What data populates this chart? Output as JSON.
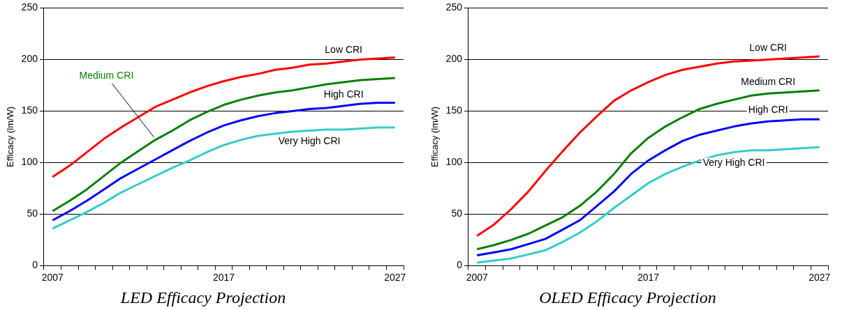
{
  "chart_data": [
    {
      "type": "line",
      "title": "LED Efficacy Projection",
      "ylabel": "Efficacy (lm/W)",
      "categories": [
        "2007",
        null,
        null,
        null,
        null,
        null,
        null,
        null,
        null,
        null,
        "2017",
        null,
        null,
        null,
        null,
        null,
        null,
        null,
        null,
        null,
        "2027"
      ],
      "series": [
        {
          "name": "Low CRI",
          "color": "#ff0000",
          "values": [
            86,
            97,
            110,
            123,
            134,
            144,
            154,
            161,
            168,
            174,
            179,
            183,
            186,
            190,
            192,
            195,
            196,
            198,
            200,
            201,
            202
          ]
        },
        {
          "name": "Medium CRI",
          "color": "#008000",
          "values": [
            53,
            63,
            74,
            87,
            100,
            111,
            122,
            131,
            141,
            149,
            156,
            161,
            165,
            168,
            170,
            173,
            176,
            178,
            180,
            181,
            182
          ]
        },
        {
          "name": "High CRI",
          "color": "#0000ff",
          "values": [
            44,
            53,
            63,
            74,
            85,
            94,
            103,
            112,
            121,
            129,
            136,
            141,
            145,
            148,
            150,
            152,
            153,
            155,
            157,
            158,
            158
          ]
        },
        {
          "name": "Very High CRI",
          "color": "#33cccc",
          "values": [
            36,
            44,
            52,
            61,
            71,
            79,
            87,
            95,
            102,
            110,
            117,
            122,
            126,
            128,
            130,
            131,
            132,
            132,
            133,
            134,
            134
          ]
        }
      ],
      "ylim": [
        0,
        250
      ],
      "yticks": [
        0,
        50,
        100,
        150,
        200,
        250
      ],
      "grid": "y",
      "legend": false,
      "marker": "none",
      "line_style": "solid"
    },
    {
      "type": "line",
      "title": "OLED Efficacy Projection",
      "ylabel": "Efficacy (lm/W)",
      "categories": [
        "2007",
        null,
        null,
        null,
        null,
        null,
        null,
        null,
        null,
        null,
        "2017",
        null,
        null,
        null,
        null,
        null,
        null,
        null,
        null,
        null,
        "2027"
      ],
      "series": [
        {
          "name": "Low CRI",
          "color": "#ff0000",
          "values": [
            29,
            40,
            55,
            72,
            92,
            111,
            129,
            145,
            160,
            170,
            178,
            185,
            190,
            193,
            196,
            198,
            199,
            200,
            201,
            202,
            203
          ]
        },
        {
          "name": "Medium CRI",
          "color": "#008000",
          "values": [
            16,
            20,
            25,
            31,
            39,
            47,
            58,
            72,
            89,
            109,
            124,
            135,
            144,
            152,
            157,
            161,
            165,
            167,
            168,
            169,
            170
          ]
        },
        {
          "name": "High CRI",
          "color": "#0000ff",
          "values": [
            10,
            13,
            16,
            21,
            26,
            35,
            44,
            58,
            72,
            89,
            102,
            112,
            121,
            127,
            131,
            135,
            138,
            140,
            141,
            142,
            142
          ]
        },
        {
          "name": "Very High CRI",
          "color": "#33cccc",
          "values": [
            3,
            5,
            7,
            11,
            15,
            23,
            32,
            43,
            56,
            68,
            80,
            89,
            96,
            102,
            107,
            110,
            112,
            112,
            113,
            114,
            115
          ]
        }
      ],
      "ylim": [
        0,
        250
      ],
      "yticks": [
        0,
        50,
        100,
        150,
        200,
        250
      ],
      "grid": "y",
      "legend": false,
      "marker": "none",
      "line_style": "solid"
    }
  ]
}
